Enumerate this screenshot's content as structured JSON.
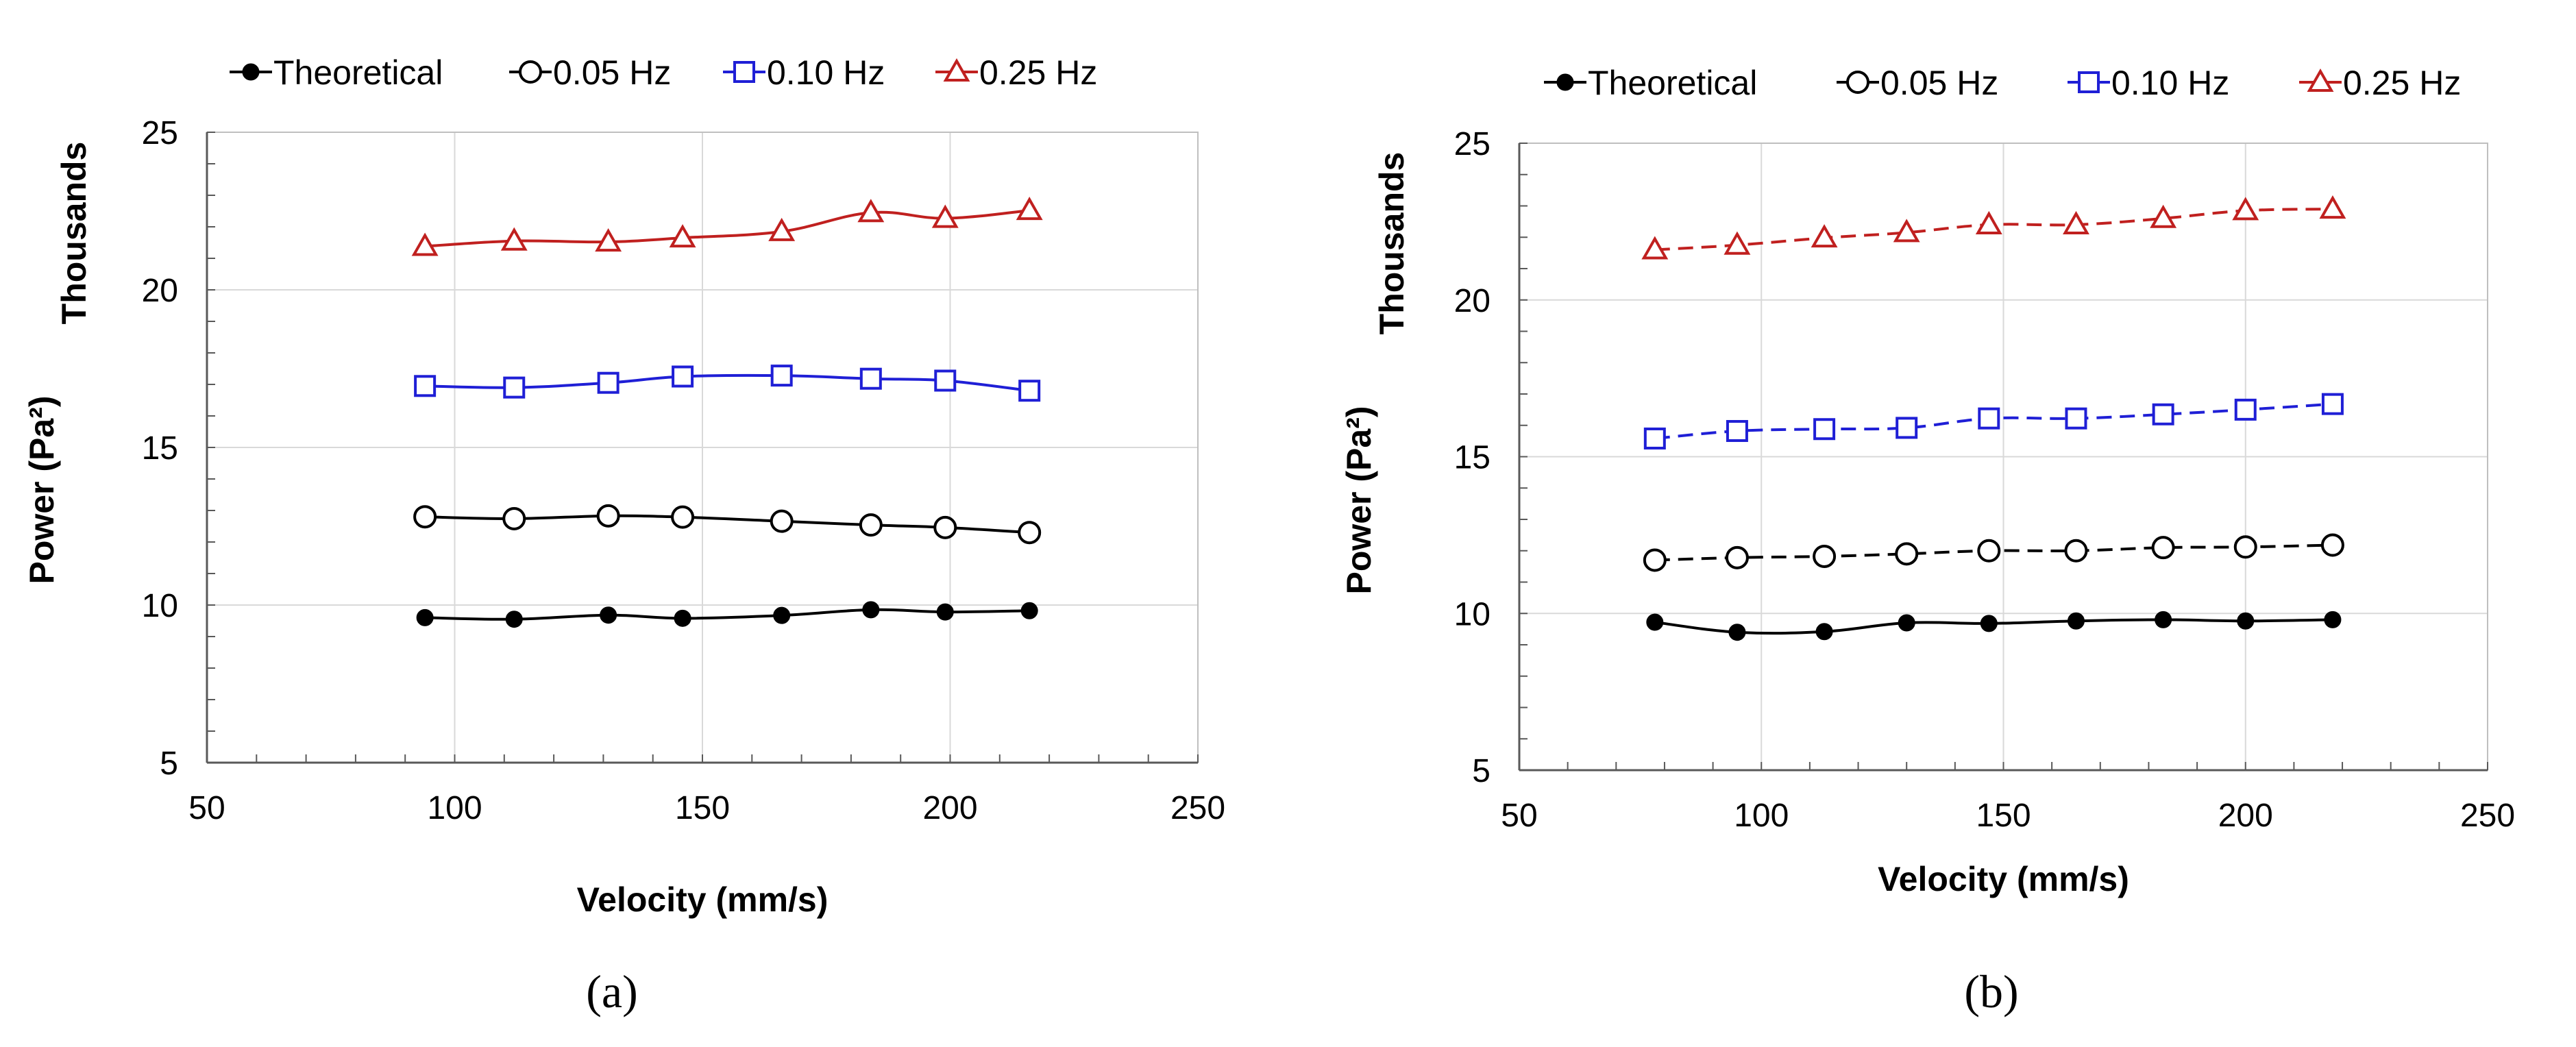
{
  "chart_data": [
    {
      "type": "line",
      "panel_label": "(a)",
      "xlabel": "Velocity (mm/s)",
      "ylabel": "Power (Pa²)",
      "ylabel_units": "Thousands",
      "xlim": [
        50,
        250
      ],
      "ylim": [
        5,
        25
      ],
      "xticks": [
        50,
        100,
        150,
        200,
        250
      ],
      "yticks": [
        5,
        10,
        15,
        20,
        25
      ],
      "grid": true,
      "legend_position": "top",
      "series": [
        {
          "name": "Theoretical",
          "color": "#000000",
          "marker": "filled-circle",
          "dash": false,
          "x": [
            94,
            112,
            131,
            146,
            166,
            184,
            199,
            216
          ],
          "y": [
            9.6,
            9.55,
            9.68,
            9.58,
            9.67,
            9.85,
            9.78,
            9.82
          ]
        },
        {
          "name": "0.05 Hz",
          "color": "#000000",
          "marker": "open-circle",
          "dash": false,
          "x": [
            94,
            112,
            131,
            146,
            166,
            184,
            199,
            216
          ],
          "y": [
            12.8,
            12.74,
            12.83,
            12.79,
            12.66,
            12.54,
            12.46,
            12.3
          ]
        },
        {
          "name": "0.10 Hz",
          "color": "#1f1fd6",
          "marker": "open-square",
          "dash": false,
          "x": [
            94,
            112,
            131,
            146,
            166,
            184,
            199,
            216
          ],
          "y": [
            16.95,
            16.9,
            17.05,
            17.25,
            17.28,
            17.18,
            17.12,
            16.8
          ]
        },
        {
          "name": "0.25 Hz",
          "color": "#c0201f",
          "marker": "open-triangle",
          "dash": false,
          "x": [
            94,
            112,
            131,
            146,
            166,
            184,
            199,
            216
          ],
          "y": [
            21.38,
            21.55,
            21.52,
            21.65,
            21.85,
            22.45,
            22.27,
            22.52
          ]
        }
      ]
    },
    {
      "type": "line",
      "panel_label": "(b)",
      "xlabel": "Velocity (mm/s)",
      "ylabel": "Power (Pa²)",
      "ylabel_units": "Thousands",
      "xlim": [
        50,
        250
      ],
      "ylim": [
        5,
        25
      ],
      "xticks": [
        50,
        100,
        150,
        200,
        250
      ],
      "yticks": [
        5,
        10,
        15,
        20,
        25
      ],
      "grid": true,
      "legend_position": "top",
      "series": [
        {
          "name": "Theoretical",
          "color": "#000000",
          "marker": "filled-circle",
          "dash": false,
          "x": [
            78,
            95,
            113,
            130,
            147,
            165,
            183,
            200,
            218
          ],
          "y": [
            9.72,
            9.4,
            9.42,
            9.7,
            9.68,
            9.76,
            9.8,
            9.76,
            9.8
          ]
        },
        {
          "name": "0.05 Hz",
          "color": "#000000",
          "marker": "open-circle",
          "dash": true,
          "x": [
            78,
            95,
            113,
            130,
            147,
            165,
            183,
            200,
            218
          ],
          "y": [
            11.7,
            11.78,
            11.82,
            11.9,
            12.0,
            12.0,
            12.1,
            12.12,
            12.18
          ]
        },
        {
          "name": "0.10 Hz",
          "color": "#1f1fd6",
          "marker": "open-square",
          "dash": true,
          "x": [
            78,
            95,
            113,
            130,
            147,
            165,
            183,
            200,
            218
          ],
          "y": [
            15.58,
            15.82,
            15.88,
            15.92,
            16.22,
            16.22,
            16.35,
            16.5,
            16.68
          ]
        },
        {
          "name": "0.25 Hz",
          "color": "#c0201f",
          "marker": "open-triangle",
          "dash": true,
          "x": [
            78,
            95,
            113,
            130,
            147,
            165,
            183,
            200,
            218
          ],
          "y": [
            21.6,
            21.75,
            21.98,
            22.15,
            22.4,
            22.4,
            22.6,
            22.85,
            22.9
          ]
        }
      ]
    }
  ]
}
